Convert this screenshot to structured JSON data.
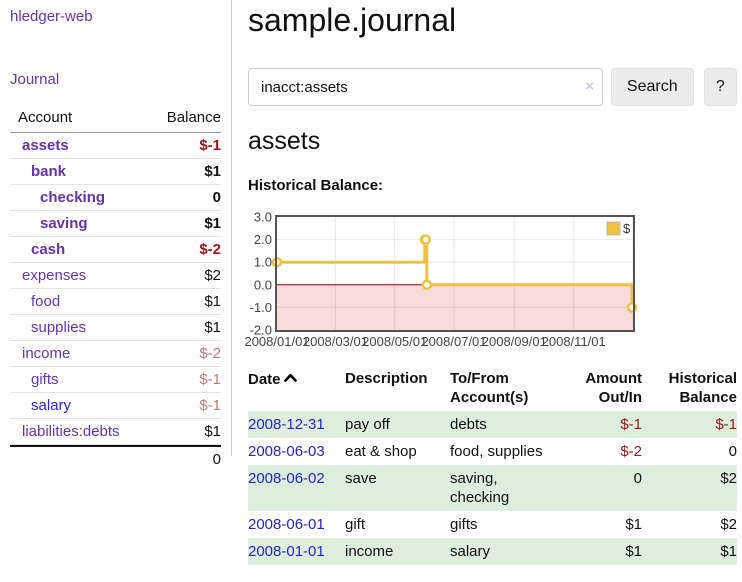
{
  "app": {
    "brand": "hledger-web"
  },
  "colors": {
    "link_purple": "#6633aa",
    "link_blue": "#2424cc",
    "negative_strong": "#9b1515",
    "negative_soft": "#c17878",
    "row_green": "#ddeedd",
    "series_gold": "#edc240"
  },
  "sidebar": {
    "nav_journal": "Journal",
    "accounts": {
      "headers": {
        "account": "Account",
        "balance": "Balance"
      },
      "rows": [
        {
          "account": "assets",
          "indent": 0,
          "bold": true,
          "balance": "$-1",
          "style": "neg-strong",
          "link": "purple"
        },
        {
          "account": "bank",
          "indent": 1,
          "bold": true,
          "balance": "$1",
          "style": "pos",
          "link": "purple"
        },
        {
          "account": "checking",
          "indent": 2,
          "bold": true,
          "balance": "0",
          "style": "pos",
          "link": "purple"
        },
        {
          "account": "saving",
          "indent": 2,
          "bold": true,
          "balance": "$1",
          "style": "pos",
          "link": "purple"
        },
        {
          "account": "cash",
          "indent": 1,
          "bold": true,
          "balance": "$-2",
          "style": "neg-strong",
          "link": "purple"
        },
        {
          "account": "expenses",
          "indent": 0,
          "bold": false,
          "balance": "$2",
          "style": "pos",
          "link": "purple"
        },
        {
          "account": "food",
          "indent": 1,
          "bold": false,
          "balance": "$1",
          "style": "pos",
          "link": "purple"
        },
        {
          "account": "supplies",
          "indent": 1,
          "bold": false,
          "balance": "$1",
          "style": "pos",
          "link": "purple"
        },
        {
          "account": "income",
          "indent": 0,
          "bold": false,
          "balance": "$-2",
          "style": "neg-soft",
          "link": "purple"
        },
        {
          "account": "gifts",
          "indent": 1,
          "bold": false,
          "balance": "$-1",
          "style": "neg-soft",
          "link": "purple"
        },
        {
          "account": "salary",
          "indent": 1,
          "bold": false,
          "balance": "$-1",
          "style": "neg-soft",
          "link": "blue"
        },
        {
          "account": "liabilities:debts",
          "indent": 0,
          "bold": false,
          "balance": "$1",
          "style": "pos",
          "link": "purple"
        }
      ],
      "total": "0"
    }
  },
  "main": {
    "title": "sample.journal",
    "search": {
      "value": "inacct:assets",
      "clear_icon": "×",
      "button_label": "Search",
      "help_label": "?"
    },
    "account_heading": "assets",
    "chart_heading": "Historical Balance:"
  },
  "chart_data": {
    "type": "line",
    "title": "Historical Balance of assets",
    "step": true,
    "series": [
      {
        "name": "$",
        "color": "#edc240",
        "points": [
          [
            "2008-01-01",
            1
          ],
          [
            "2008-06-01",
            2
          ],
          [
            "2008-06-02",
            2
          ],
          [
            "2008-06-03",
            0
          ],
          [
            "2008-12-31",
            -1
          ]
        ]
      }
    ],
    "x_range": [
      "2008-01-01",
      "2009-01-01"
    ],
    "x_ticks": [
      {
        "date": "2008-01-01",
        "label": "2008/01/01"
      },
      {
        "date": "2008-03-01",
        "label": "2008/03/01"
      },
      {
        "date": "2008-05-01",
        "label": "2008/05/01"
      },
      {
        "date": "2008-07-01",
        "label": "2008/07/01"
      },
      {
        "date": "2008-09-01",
        "label": "2008/09/01"
      },
      {
        "date": "2008-11-01",
        "label": "2008/11/01"
      },
      {
        "date": "2009-01-01",
        "label": ""
      }
    ],
    "y_ticks": [
      3.0,
      2.0,
      1.0,
      0.0,
      -1.0,
      -2.0
    ],
    "ylim": [
      -2,
      3
    ],
    "legend": {
      "label": "$",
      "position": "top-right",
      "swatch_color": "#edc240"
    },
    "grid": true,
    "border_color": "#545454",
    "zero_line_color": "#990000",
    "negative_region_color": "#f9dbdb"
  },
  "register": {
    "headers": {
      "date": "Date",
      "description": "Description",
      "accounts": "To/From Account(s)",
      "amount": "Amount Out/In",
      "balance": "Historical Balance"
    },
    "sort": "ascending",
    "rows": [
      {
        "date": "2008-12-31",
        "description": "pay off",
        "accounts": "debts",
        "amount": "$-1",
        "amount_neg": true,
        "balance": "$-1",
        "balance_neg": true
      },
      {
        "date": "2008-06-03",
        "description": "eat & shop",
        "accounts": "food, supplies",
        "amount": "$-2",
        "amount_neg": true,
        "balance": "0",
        "balance_neg": false
      },
      {
        "date": "2008-06-02",
        "description": "save",
        "accounts": "saving, checking",
        "amount": "0",
        "amount_neg": false,
        "balance": "$2",
        "balance_neg": false
      },
      {
        "date": "2008-06-01",
        "description": "gift",
        "accounts": "gifts",
        "amount": "$1",
        "amount_neg": false,
        "balance": "$2",
        "balance_neg": false
      },
      {
        "date": "2008-01-01",
        "description": "income",
        "accounts": "salary",
        "amount": "$1",
        "amount_neg": false,
        "balance": "$1",
        "balance_neg": false
      }
    ]
  }
}
